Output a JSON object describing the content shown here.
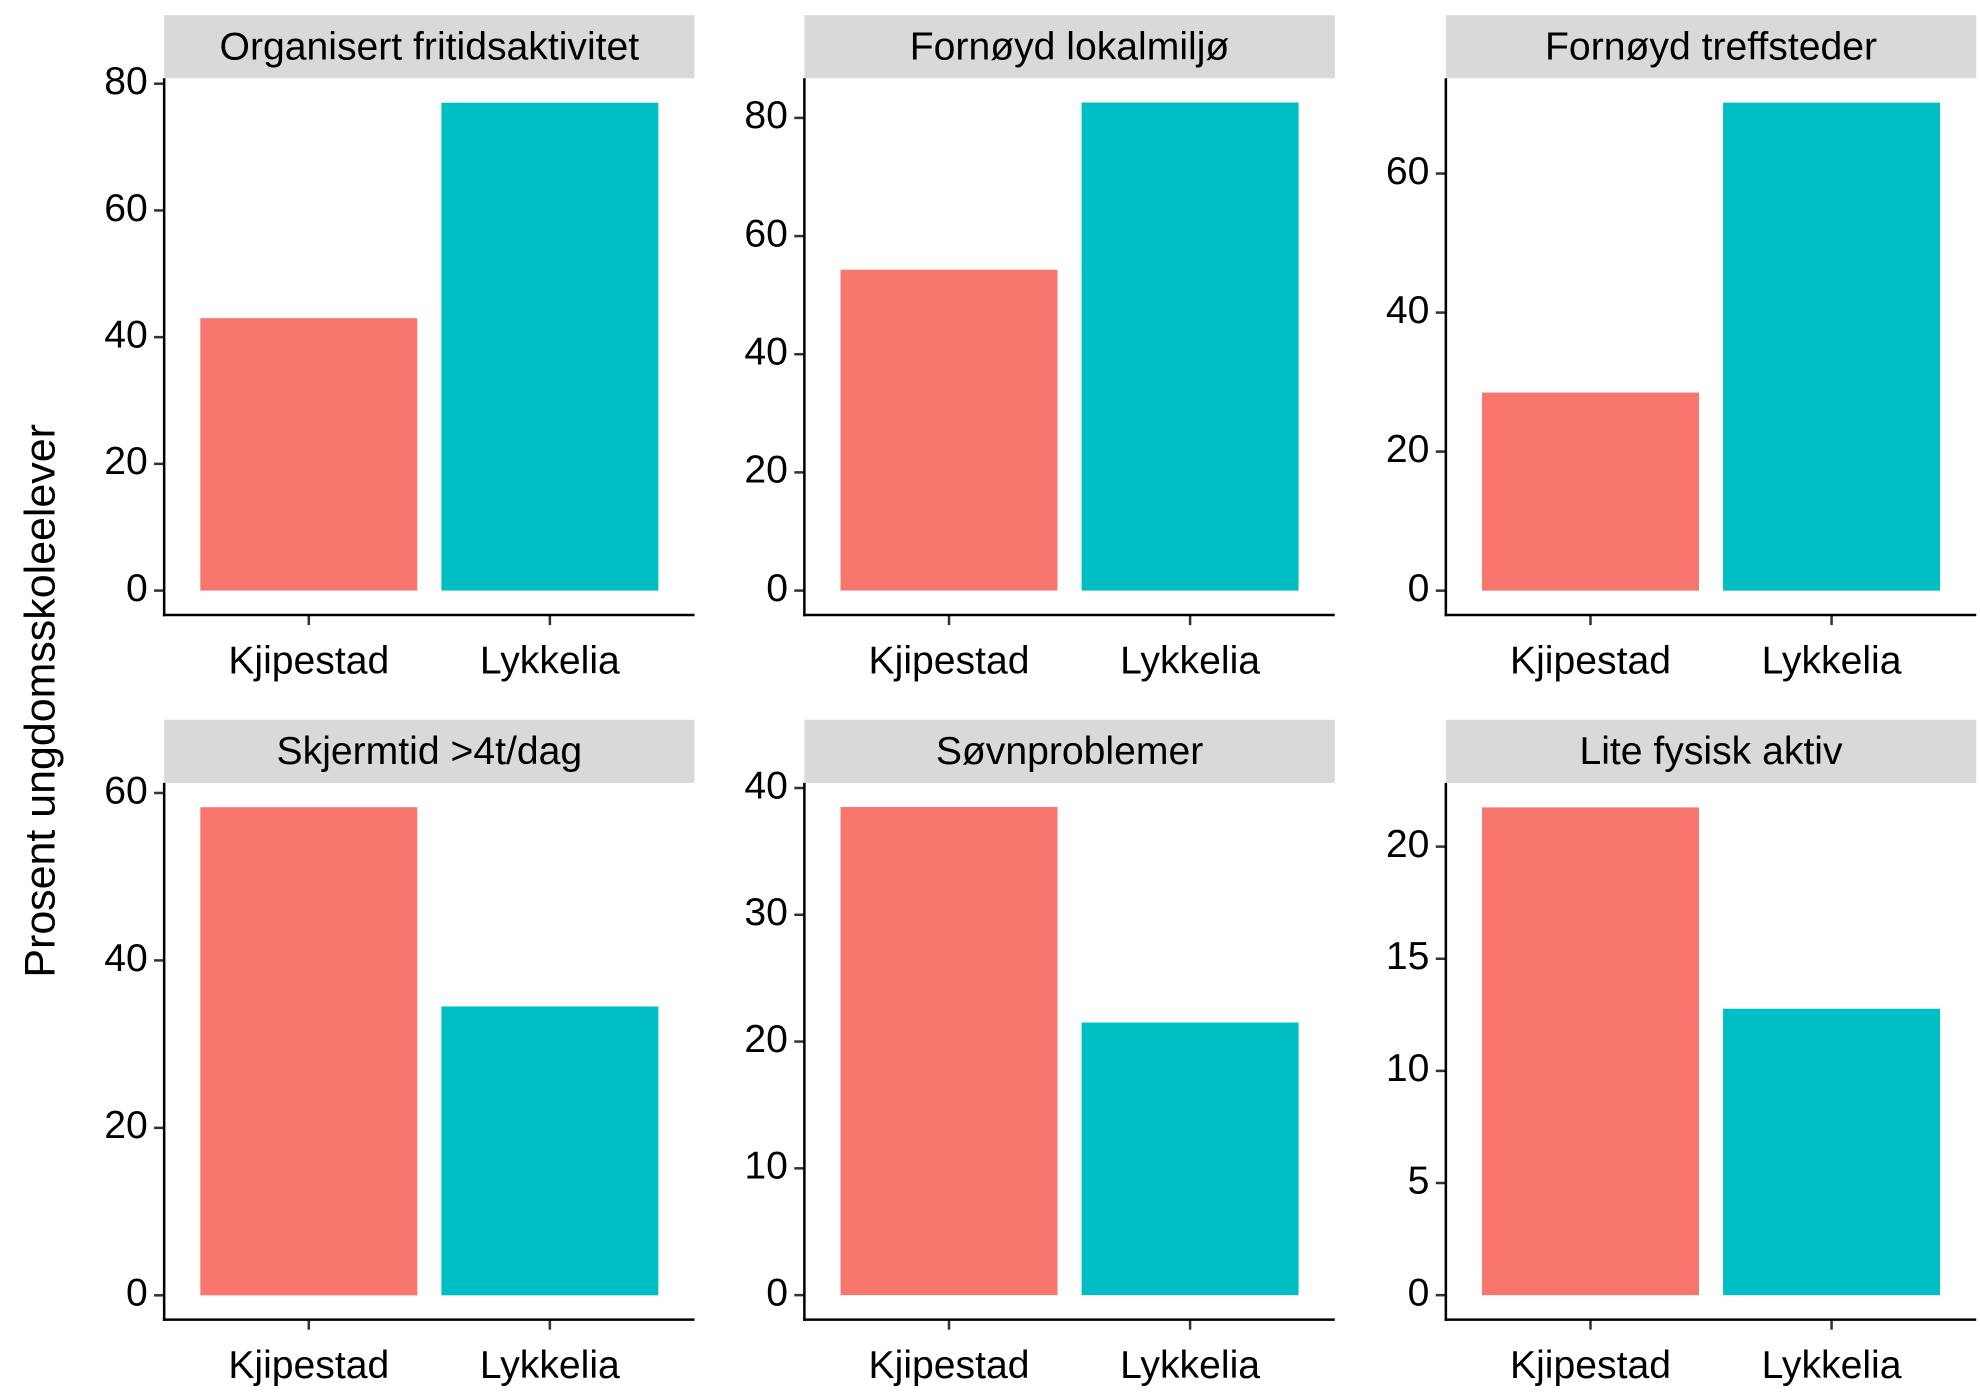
{
  "y_label": "Prosent ungdomsskoleelever",
  "chart_data": [
    {
      "type": "bar",
      "title": "Organisert fritidsaktivitet",
      "categories": [
        "Kjipestad",
        "Lykkelia"
      ],
      "values": [
        43,
        77
      ],
      "colors": [
        "#F8766D",
        "#00BFC4"
      ],
      "ylim": [
        -3.85,
        80.85
      ],
      "yticks": [
        0,
        20,
        40,
        60,
        80
      ]
    },
    {
      "type": "bar",
      "title": "Fornøyd lokalmiljø",
      "categories": [
        "Kjipestad",
        "Lykkelia"
      ],
      "values": [
        54.3,
        82.6
      ],
      "colors": [
        "#F8766D",
        "#00BFC4"
      ],
      "ylim": [
        -4.13,
        86.7
      ],
      "yticks": [
        0,
        20,
        40,
        60,
        80
      ]
    },
    {
      "type": "bar",
      "title": "Fornøyd treffsteder",
      "categories": [
        "Kjipestad",
        "Lykkelia"
      ],
      "values": [
        28.5,
        70.2
      ],
      "colors": [
        "#F8766D",
        "#00BFC4"
      ],
      "ylim": [
        -3.5,
        73.7
      ],
      "yticks": [
        0,
        20,
        40,
        60
      ]
    },
    {
      "type": "bar",
      "title": "Skjermtid >4t/dag",
      "categories": [
        "Kjipestad",
        "Lykkelia"
      ],
      "values": [
        58.3,
        34.5
      ],
      "colors": [
        "#F8766D",
        "#00BFC4"
      ],
      "ylim": [
        -2.9,
        61.2
      ],
      "yticks": [
        0,
        20,
        40,
        60
      ]
    },
    {
      "type": "bar",
      "title": "Søvnproblemer",
      "categories": [
        "Kjipestad",
        "Lykkelia"
      ],
      "values": [
        38.5,
        21.5
      ],
      "colors": [
        "#F8766D",
        "#00BFC4"
      ],
      "ylim": [
        -1.93,
        40.4
      ],
      "yticks": [
        0,
        10,
        20,
        30,
        40
      ]
    },
    {
      "type": "bar",
      "title": "Lite fysisk aktiv",
      "categories": [
        "Kjipestad",
        "Lykkelia"
      ],
      "values": [
        21.75,
        12.77
      ],
      "colors": [
        "#F8766D",
        "#00BFC4"
      ],
      "ylim": [
        -1.09,
        22.84
      ],
      "yticks": [
        0,
        5,
        10,
        15,
        20
      ]
    }
  ]
}
